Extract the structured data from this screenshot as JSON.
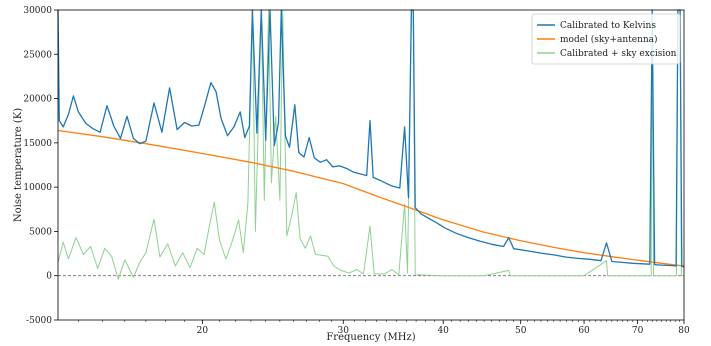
{
  "chart_data": {
    "type": "line",
    "title": "",
    "xlabel": "Frequency (MHz)",
    "ylabel": "Noise temperature (K)",
    "xscale": "log",
    "xlim": [
      13.2,
      80
    ],
    "ylim": [
      -5000,
      30000
    ],
    "xticks": [
      20,
      30,
      40,
      50,
      60,
      70,
      80
    ],
    "yticks": [
      -5000,
      0,
      5000,
      10000,
      15000,
      20000,
      25000,
      30000
    ],
    "grid": false,
    "legend_position": "top-right",
    "zero_line": {
      "y": 0,
      "style": "dashed"
    },
    "series": [
      {
        "name": "Calibrated to Kelvins",
        "color": "#1f77b4",
        "points": [
          [
            13.2,
            30000
          ],
          [
            13.25,
            17500
          ],
          [
            13.4,
            16800
          ],
          [
            13.6,
            18200
          ],
          [
            13.8,
            20300
          ],
          [
            14.0,
            18500
          ],
          [
            14.3,
            17200
          ],
          [
            14.6,
            16600
          ],
          [
            14.9,
            16200
          ],
          [
            15.2,
            19200
          ],
          [
            15.5,
            16900
          ],
          [
            15.8,
            15500
          ],
          [
            16.1,
            18000
          ],
          [
            16.4,
            15500
          ],
          [
            16.7,
            14900
          ],
          [
            17.0,
            15200
          ],
          [
            17.4,
            19500
          ],
          [
            17.8,
            16200
          ],
          [
            18.2,
            21200
          ],
          [
            18.6,
            16500
          ],
          [
            19.0,
            17300
          ],
          [
            19.4,
            16900
          ],
          [
            19.8,
            17000
          ],
          [
            20.1,
            19000
          ],
          [
            20.5,
            21800
          ],
          [
            20.8,
            20800
          ],
          [
            21.1,
            17800
          ],
          [
            21.5,
            15800
          ],
          [
            21.9,
            16800
          ],
          [
            22.3,
            18500
          ],
          [
            22.6,
            15600
          ],
          [
            22.9,
            16900
          ],
          [
            23.1,
            30000
          ],
          [
            23.4,
            16100
          ],
          [
            23.7,
            30000
          ],
          [
            24.0,
            15300
          ],
          [
            24.3,
            30000
          ],
          [
            24.6,
            14700
          ],
          [
            24.9,
            17300
          ],
          [
            25.1,
            30000
          ],
          [
            25.4,
            15800
          ],
          [
            25.7,
            14500
          ],
          [
            26.1,
            19300
          ],
          [
            26.4,
            13900
          ],
          [
            26.8,
            13400
          ],
          [
            27.2,
            15600
          ],
          [
            27.6,
            13300
          ],
          [
            28.1,
            12800
          ],
          [
            28.6,
            13100
          ],
          [
            29.1,
            12300
          ],
          [
            29.7,
            12400
          ],
          [
            30.3,
            12100
          ],
          [
            30.9,
            11700
          ],
          [
            31.5,
            11500
          ],
          [
            32.1,
            11300
          ],
          [
            32.4,
            17500
          ],
          [
            32.7,
            11100
          ],
          [
            33.3,
            10800
          ],
          [
            34.0,
            10400
          ],
          [
            34.6,
            10100
          ],
          [
            35.3,
            9900
          ],
          [
            35.8,
            16800
          ],
          [
            36.2,
            8800
          ],
          [
            36.5,
            30000
          ],
          [
            36.7,
            30000
          ],
          [
            36.9,
            7700
          ],
          [
            37.5,
            7000
          ],
          [
            38.3,
            6500
          ],
          [
            39.2,
            6000
          ],
          [
            40.2,
            5400
          ],
          [
            41.5,
            4800
          ],
          [
            43.0,
            4300
          ],
          [
            44.5,
            3900
          ],
          [
            46.0,
            3550
          ],
          [
            47.6,
            3300
          ],
          [
            48.3,
            4300
          ],
          [
            49.0,
            3050
          ],
          [
            51.0,
            2800
          ],
          [
            53.0,
            2550
          ],
          [
            55.0,
            2350
          ],
          [
            57.0,
            2100
          ],
          [
            59.0,
            1950
          ],
          [
            61.0,
            1850
          ],
          [
            63.0,
            1700
          ],
          [
            64.0,
            3700
          ],
          [
            65.0,
            1600
          ],
          [
            67.0,
            1500
          ],
          [
            69.0,
            1400
          ],
          [
            71.0,
            1350
          ],
          [
            72.5,
            1300
          ],
          [
            73.0,
            30000
          ],
          [
            73.5,
            1250
          ],
          [
            75.0,
            1200
          ],
          [
            77.0,
            1150
          ],
          [
            78.2,
            1100
          ],
          [
            78.6,
            30000
          ],
          [
            79.1,
            30000
          ],
          [
            79.5,
            1050
          ],
          [
            80.0,
            1000
          ]
        ]
      },
      {
        "name": "model (sky+antenna)",
        "color": "#ff7f0e",
        "points": [
          [
            13.2,
            16400
          ],
          [
            15.0,
            15700
          ],
          [
            17.0,
            14900
          ],
          [
            20.0,
            13800
          ],
          [
            23.0,
            12800
          ],
          [
            26.0,
            11800
          ],
          [
            30.0,
            10400
          ],
          [
            33.0,
            9000
          ],
          [
            36.0,
            7800
          ],
          [
            40.0,
            6300
          ],
          [
            45.0,
            4900
          ],
          [
            50.0,
            3950
          ],
          [
            55.0,
            3200
          ],
          [
            60.0,
            2600
          ],
          [
            65.0,
            2150
          ],
          [
            70.0,
            1750
          ],
          [
            75.0,
            1400
          ],
          [
            80.0,
            1100
          ]
        ]
      },
      {
        "name": "Calibrated + sky excision",
        "color": "#8fd18f",
        "points": [
          [
            13.2,
            1500
          ],
          [
            13.4,
            3800
          ],
          [
            13.6,
            1900
          ],
          [
            13.9,
            4300
          ],
          [
            14.2,
            2400
          ],
          [
            14.5,
            3300
          ],
          [
            14.8,
            800
          ],
          [
            15.1,
            3100
          ],
          [
            15.4,
            2200
          ],
          [
            15.7,
            -400
          ],
          [
            16.0,
            1800
          ],
          [
            16.4,
            -200
          ],
          [
            16.7,
            1500
          ],
          [
            17.0,
            2600
          ],
          [
            17.4,
            6400
          ],
          [
            17.7,
            2100
          ],
          [
            18.1,
            3600
          ],
          [
            18.5,
            1100
          ],
          [
            18.9,
            2600
          ],
          [
            19.3,
            900
          ],
          [
            19.7,
            3100
          ],
          [
            20.1,
            2400
          ],
          [
            20.4,
            5500
          ],
          [
            20.7,
            8300
          ],
          [
            21.0,
            4100
          ],
          [
            21.4,
            1900
          ],
          [
            21.8,
            3900
          ],
          [
            22.2,
            6300
          ],
          [
            22.5,
            2600
          ],
          [
            22.8,
            8200
          ],
          [
            23.1,
            30000
          ],
          [
            23.3,
            5000
          ],
          [
            23.5,
            17500
          ],
          [
            23.7,
            30000
          ],
          [
            23.9,
            8500
          ],
          [
            24.2,
            30000
          ],
          [
            24.4,
            10500
          ],
          [
            24.7,
            18000
          ],
          [
            25.0,
            8500
          ],
          [
            25.2,
            30000
          ],
          [
            25.5,
            4500
          ],
          [
            25.8,
            6300
          ],
          [
            26.2,
            9400
          ],
          [
            26.5,
            4200
          ],
          [
            26.9,
            3100
          ],
          [
            27.3,
            4500
          ],
          [
            27.7,
            2400
          ],
          [
            28.2,
            2300
          ],
          [
            28.7,
            2200
          ],
          [
            29.2,
            1100
          ],
          [
            29.8,
            600
          ],
          [
            30.5,
            300
          ],
          [
            31.2,
            700
          ],
          [
            31.8,
            200
          ],
          [
            32.4,
            5600
          ],
          [
            32.8,
            200
          ],
          [
            33.8,
            200
          ],
          [
            34.5,
            700
          ],
          [
            35.2,
            100
          ],
          [
            35.8,
            8100
          ],
          [
            36.1,
            300
          ],
          [
            36.5,
            30000
          ],
          [
            36.7,
            30000
          ],
          [
            36.9,
            100
          ],
          [
            40.0,
            0
          ],
          [
            45.0,
            0
          ],
          [
            48.3,
            600
          ],
          [
            48.5,
            0
          ],
          [
            55.0,
            0
          ],
          [
            60.0,
            0
          ],
          [
            64.0,
            1700
          ],
          [
            64.2,
            0
          ],
          [
            70.0,
            0
          ],
          [
            72.8,
            0
          ],
          [
            73.0,
            30000
          ],
          [
            73.3,
            0
          ],
          [
            78.3,
            0
          ],
          [
            78.6,
            30000
          ],
          [
            79.1,
            30000
          ],
          [
            79.4,
            0
          ],
          [
            80.0,
            0
          ]
        ]
      }
    ]
  }
}
